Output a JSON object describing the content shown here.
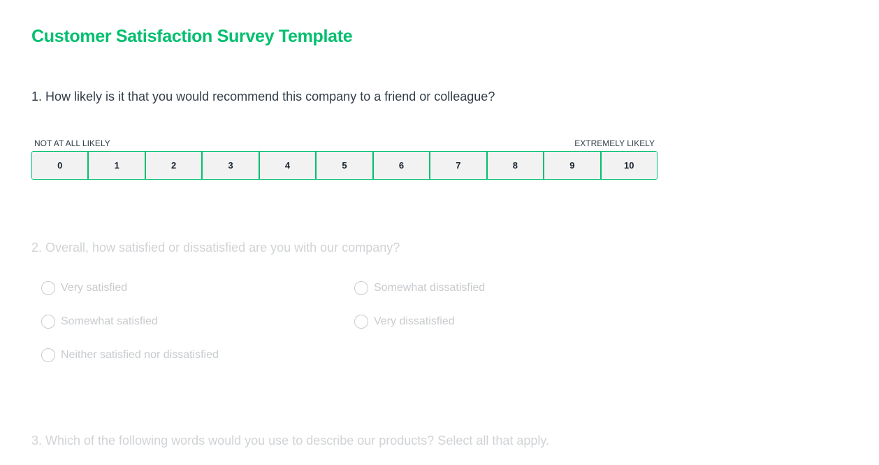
{
  "title": "Customer Satisfaction Survey Template",
  "accent_color": "#00bf6f",
  "q1": {
    "text": "1. How likely is it that you would recommend this company to a friend or colleague?",
    "low_label": "NOT AT ALL LIKELY",
    "high_label": "EXTREMELY LIKELY",
    "options": [
      "0",
      "1",
      "2",
      "3",
      "4",
      "5",
      "6",
      "7",
      "8",
      "9",
      "10"
    ]
  },
  "q2": {
    "text": "2. Overall, how satisfied or dissatisfied are you with our company?",
    "options": [
      "Very satisfied",
      "Somewhat satisfied",
      "Neither satisfied nor dissatisfied",
      "Somewhat dissatisfied",
      "Very dissatisfied"
    ]
  },
  "q3": {
    "text": "3. Which of the following words would you use to describe our products? Select all that apply."
  }
}
